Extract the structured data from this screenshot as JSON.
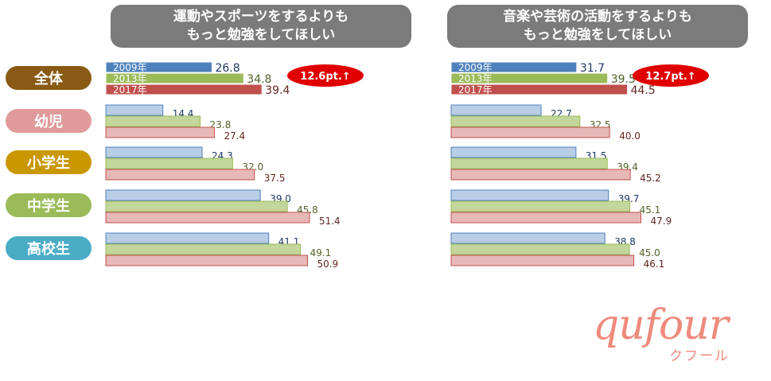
{
  "chart_data": [
    {
      "type": "bar",
      "orientation": "horizontal",
      "title_lines": [
        "運動やスポーツをするよりも",
        "もっと勉強をしてほしい"
      ],
      "categories": [
        "全体",
        "幼児",
        "小学生",
        "中学生",
        "高校生"
      ],
      "series": [
        {
          "name": "2009年",
          "values": [
            26.8,
            14.4,
            24.3,
            39.0,
            41.1
          ]
        },
        {
          "name": "2013年",
          "values": [
            34.8,
            23.8,
            32.0,
            45.8,
            49.1
          ]
        },
        {
          "name": "2017年",
          "values": [
            39.4,
            27.4,
            37.5,
            51.4,
            50.9
          ]
        }
      ],
      "annotation": "12.6pt.↑"
    },
    {
      "type": "bar",
      "orientation": "horizontal",
      "title_lines": [
        "音楽や芸術の活動をするよりも",
        "もっと勉強をしてほしい"
      ],
      "categories": [
        "全体",
        "幼児",
        "小学生",
        "中学生",
        "高校生"
      ],
      "series": [
        {
          "name": "2009年",
          "values": [
            31.7,
            22.7,
            31.5,
            39.7,
            38.8
          ]
        },
        {
          "name": "2013年",
          "values": [
            39.5,
            32.5,
            39.4,
            45.1,
            45.0
          ]
        },
        {
          "name": "2017年",
          "values": [
            44.5,
            40.0,
            45.2,
            47.9,
            46.1
          ]
        }
      ],
      "annotation": "12.7pt.↑"
    }
  ],
  "category_colors": [
    "#8a5a14",
    "#e09a9a",
    "#c99700",
    "#9bbb59",
    "#4bacc6"
  ],
  "series_colors_highlight": [
    "#4f81bd",
    "#9bbb59",
    "#c0504d"
  ],
  "series_colors_light": [
    "#b9cde5",
    "#c3d69b",
    "#e6b9b8"
  ],
  "label_colors": [
    "#1f3864",
    "#4f6228",
    "#632523"
  ],
  "logo": {
    "main": "qufour",
    "sub": "クフール"
  }
}
